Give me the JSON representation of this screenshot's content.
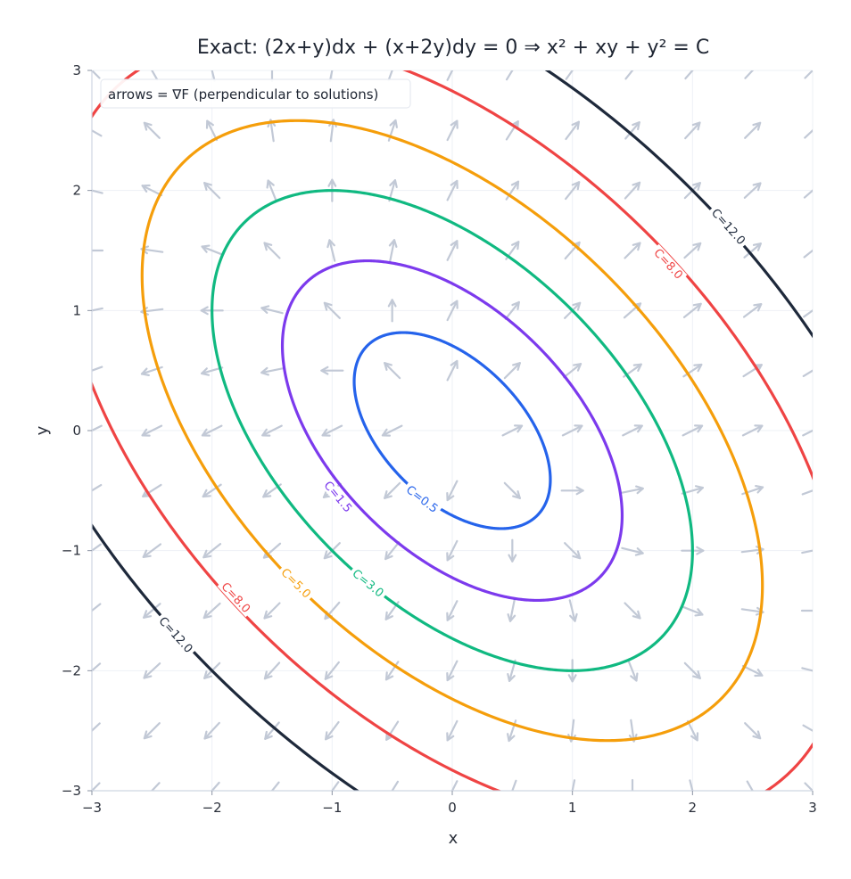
{
  "chart_data": {
    "type": "contour",
    "title": "Exact: (2x+y)dx + (x+2y)dy = 0 ⇒ x² + xy + y² = C",
    "xlabel": "x",
    "ylabel": "y",
    "xlim": [
      -3,
      3
    ],
    "ylim": [
      -3,
      3
    ],
    "xticks": [
      -3,
      -2,
      -1,
      0,
      1,
      2,
      3
    ],
    "yticks": [
      -3,
      -2,
      -1,
      0,
      1,
      2,
      3
    ],
    "xtick_labels": [
      "−3",
      "−2",
      "−1",
      "0",
      "1",
      "2",
      "3"
    ],
    "ytick_labels": [
      "−3",
      "−2",
      "−1",
      "0",
      "1",
      "2",
      "3"
    ],
    "grid": true,
    "legend": {
      "text": "arrows = ∇F (perpendicular to solutions)",
      "placement": "top-left"
    },
    "levels": [
      {
        "C": 0.5,
        "label": "C=0.5",
        "color": "#2563eb"
      },
      {
        "C": 1.5,
        "label": "C=1.5",
        "color": "#7c3aed"
      },
      {
        "C": 3.0,
        "label": "C=3.0",
        "color": "#10b981"
      },
      {
        "C": 5.0,
        "label": "C=5.0",
        "color": "#f59e0b"
      },
      {
        "C": 8.0,
        "label": "C=8.0",
        "color": "#ef4444"
      },
      {
        "C": 12.0,
        "label": "C=12.0",
        "color": "#1e293b"
      }
    ],
    "label_points": [
      {
        "label": "C=0.5",
        "x": -0.25,
        "y": -0.57
      },
      {
        "label": "C=1.5",
        "x": -0.95,
        "y": -0.55
      },
      {
        "label": "C=3.0",
        "x": -0.7,
        "y": -1.27
      },
      {
        "label": "C=5.0",
        "x": -1.3,
        "y": -1.27
      },
      {
        "label": "C=8.0",
        "x": -1.8,
        "y": -1.39
      },
      {
        "label": "C=8.0",
        "x": 1.8,
        "y": 1.39
      },
      {
        "label": "C=12.0",
        "x": -2.3,
        "y": -1.7
      },
      {
        "label": "C=12.0",
        "x": 2.3,
        "y": 1.7
      }
    ],
    "field": {
      "name": "gradient of F",
      "Fx": "2x+y",
      "Fy": "x+2y",
      "grid_n": 13,
      "arrow_color": "#c2c9d6"
    }
  }
}
